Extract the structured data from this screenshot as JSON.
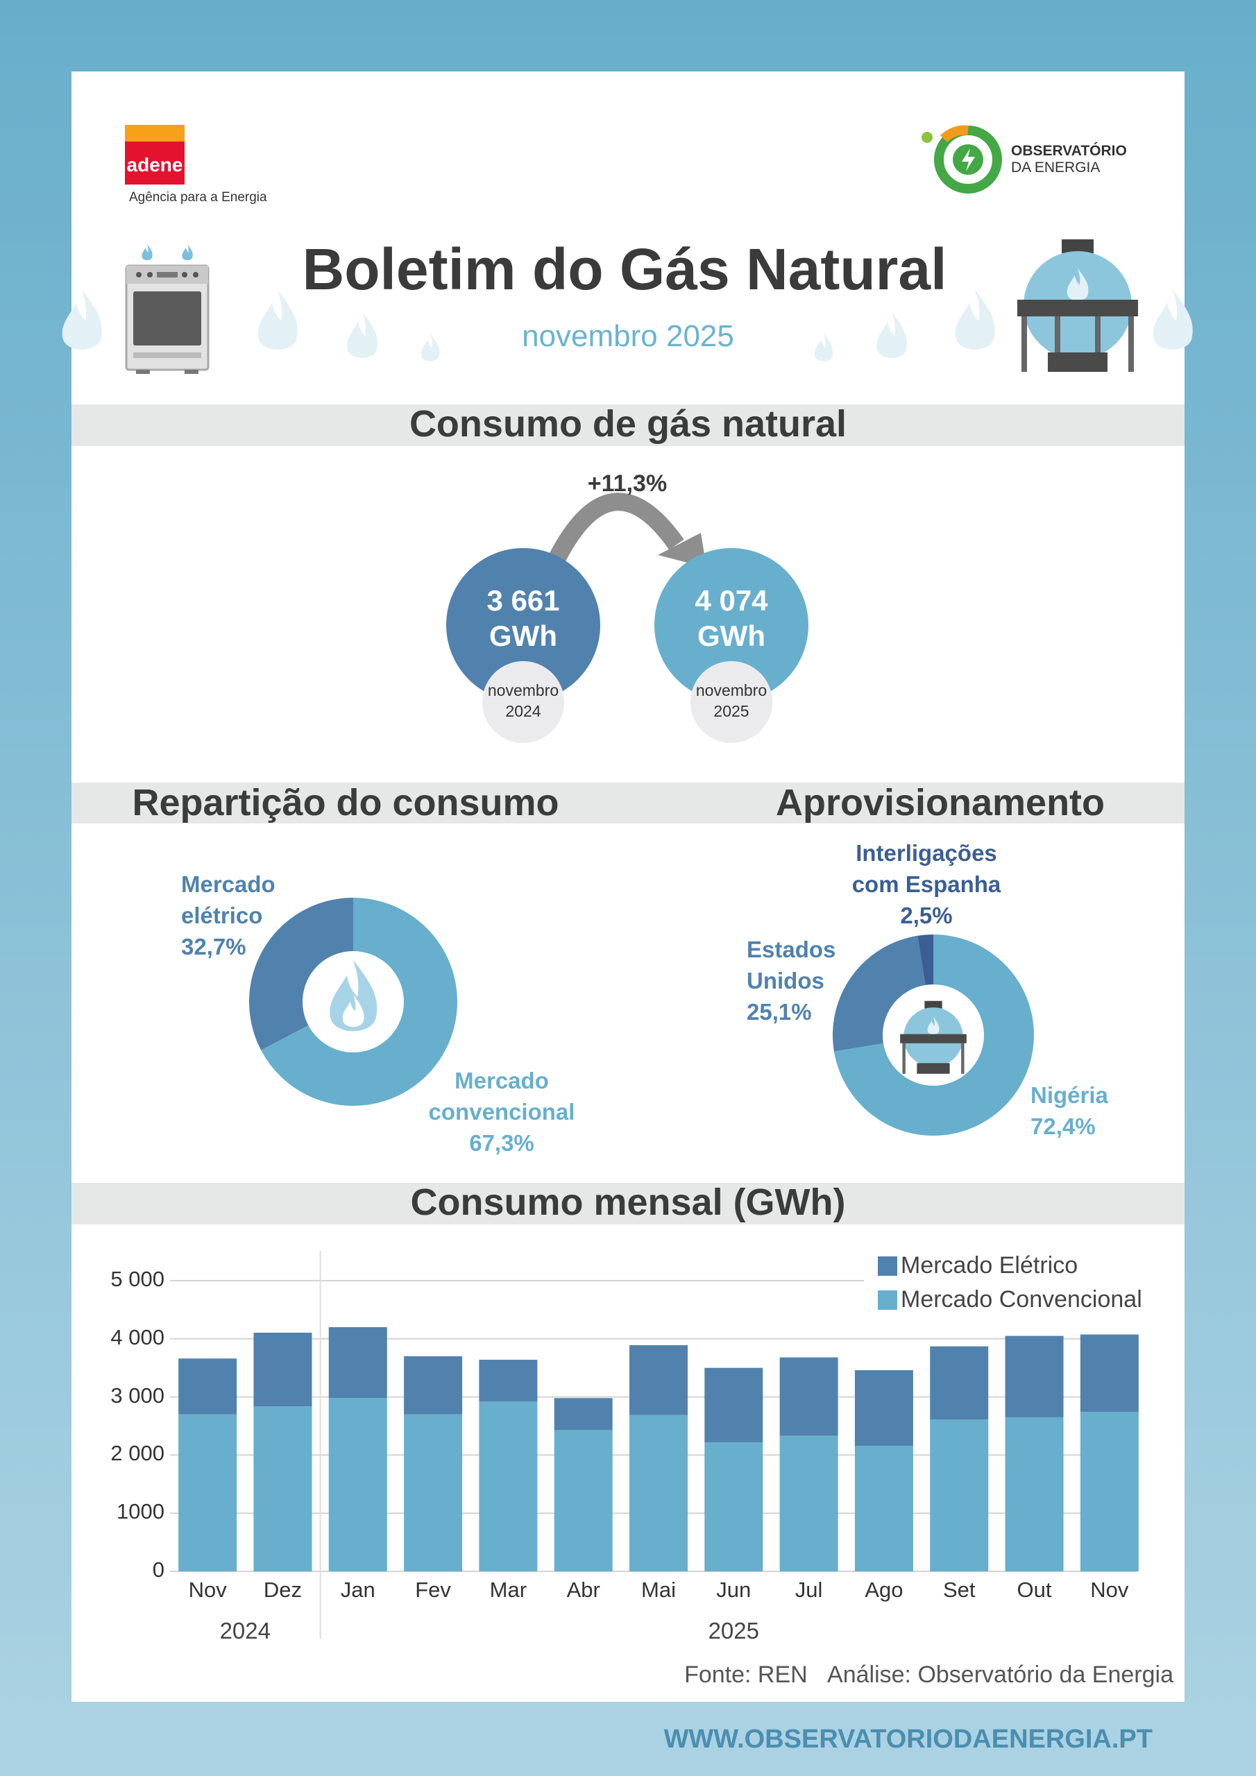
{
  "header": {
    "adene_logo": "adene",
    "adene_tagline": "Agência para a Energia",
    "observatorio_line1": "OBSERVATÓRIO",
    "observatorio_line2": "DA ENERGIA",
    "title": "Boletim do Gás Natural",
    "subtitle": "novembro 2025"
  },
  "consumption": {
    "section_title": "Consumo de gás natural",
    "change": "+11,3%",
    "unit": "GWh",
    "items": [
      {
        "value": 3661,
        "label": "3 661",
        "period": "novembro 2024",
        "color": "#5082ad"
      },
      {
        "value": 4074,
        "label": "4 074",
        "period": "novembro 2025",
        "color": "#67afcd"
      }
    ]
  },
  "chart_data": [
    {
      "type": "pie",
      "title": "Repartição do consumo",
      "categories": [
        "Mercado convencional",
        "Mercado elétrico"
      ],
      "values": [
        67.3,
        32.7
      ],
      "value_labels": [
        "67,3%",
        "32,7%"
      ],
      "colors": [
        "#67afcd",
        "#5082ad"
      ]
    },
    {
      "type": "pie",
      "title": "Aprovisionamento",
      "categories": [
        "Nigéria",
        "Estados Unidos",
        "Interligações com Espanha"
      ],
      "values": [
        72.4,
        25.1,
        2.5
      ],
      "value_labels": [
        "72,4%",
        "25,1%",
        "2,5%"
      ],
      "colors": [
        "#67afcd",
        "#5082ad",
        "#3b5f92"
      ]
    },
    {
      "type": "bar",
      "title": "Consumo mensal (GWh)",
      "categories": [
        "Nov",
        "Dez",
        "Jan",
        "Fev",
        "Mar",
        "Abr",
        "Mai",
        "Jun",
        "Jul",
        "Ago",
        "Set",
        "Out",
        "Nov"
      ],
      "groups": [
        {
          "label": "2024",
          "span": 2
        },
        {
          "label": "2025",
          "span": 11
        }
      ],
      "series": [
        {
          "name": "Mercado Elétrico",
          "color": "#5082ad",
          "values": [
            961,
            1265,
            1220,
            1000,
            720,
            550,
            1200,
            1280,
            1350,
            1300,
            1260,
            1400,
            1332
          ]
        },
        {
          "name": "Mercado Convencional",
          "color": "#67afcd",
          "values": [
            2700,
            2840,
            2980,
            2700,
            2920,
            2430,
            2690,
            2220,
            2330,
            2160,
            2610,
            2650,
            2742
          ]
        }
      ],
      "ylim": [
        0,
        5000
      ],
      "yticks": [
        0,
        1000,
        {
          "value": 2000,
          "label": "2 000"
        },
        {
          "value": 3000,
          "label": "3 000"
        },
        {
          "value": 4000,
          "label": "4 000"
        },
        {
          "value": 5000,
          "label": "5 000"
        }
      ],
      "grid": true,
      "stacked": true
    }
  ],
  "footer": {
    "source": "Fonte: REN",
    "analysis": "Análise: Observatório da Energia",
    "website": "WWW.OBSERVATORIODAENERGIA.PT"
  }
}
